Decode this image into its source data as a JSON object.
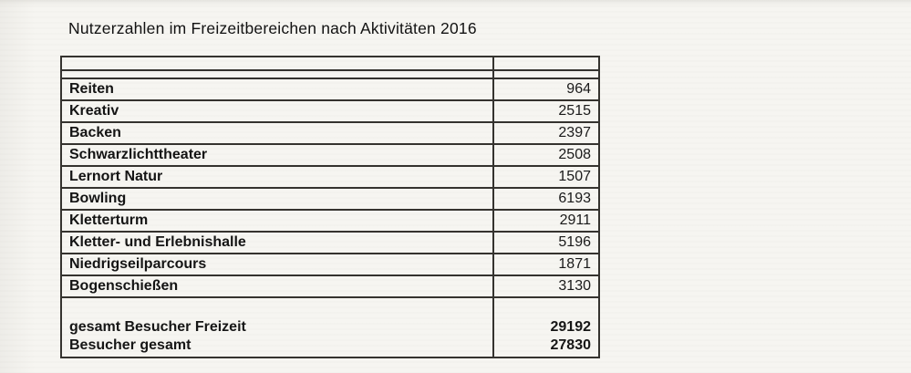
{
  "page": {
    "title": "Nutzerzahlen im Freizeitbereichen nach Aktivitäten 2016"
  },
  "table": {
    "rows": [
      {
        "label": "Reiten",
        "value": "964"
      },
      {
        "label": "Kreativ",
        "value": "2515"
      },
      {
        "label": "Backen",
        "value": "2397"
      },
      {
        "label": "Schwarzlichttheater",
        "value": "2508"
      },
      {
        "label": "Lernort Natur",
        "value": "1507"
      },
      {
        "label": "Bowling",
        "value": "6193"
      },
      {
        "label": "Kletterturm",
        "value": "2911"
      },
      {
        "label": "Kletter- und Erlebnishalle",
        "value": "5196"
      },
      {
        "label": "Niedrigseilparcours",
        "value": "1871"
      },
      {
        "label": "Bogenschießen",
        "value": "3130"
      }
    ],
    "totals": [
      {
        "label": "gesamt Besucher Freizeit",
        "value": "29192"
      },
      {
        "label": "Besucher gesamt",
        "value": "27830"
      }
    ]
  },
  "colors": {
    "paper": "#f6f5f1",
    "ink": "#161616",
    "table_border": "#35332f"
  }
}
